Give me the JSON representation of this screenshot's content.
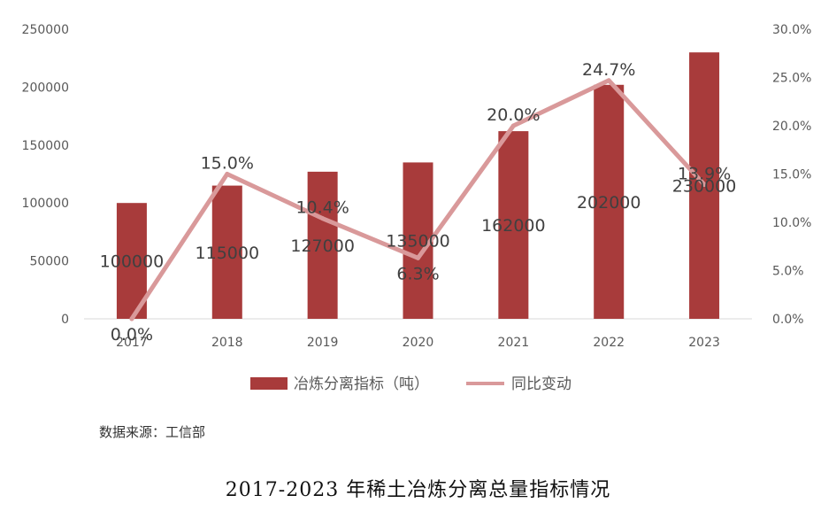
{
  "chart_data": {
    "type": "bar+line",
    "categories": [
      "2017",
      "2018",
      "2019",
      "2020",
      "2021",
      "2022",
      "2023"
    ],
    "series": [
      {
        "name": "冶炼分离指标（吨）",
        "type": "bar",
        "axis": "left",
        "color": "#a83b3b",
        "values": [
          100000,
          115000,
          127000,
          135000,
          162000,
          202000,
          230000
        ],
        "labels": [
          "100000",
          "115000",
          "127000",
          "135000",
          "162000",
          "202000",
          "230000"
        ]
      },
      {
        "name": "同比变动",
        "type": "line",
        "axis": "right",
        "color": "#d9999a",
        "values": [
          0.0,
          15.0,
          10.4,
          6.3,
          20.0,
          24.7,
          13.9
        ],
        "labels": [
          "0.0%",
          "15.0%",
          "10.4%",
          "6.3%",
          "20.0%",
          "24.7%",
          "13.9%"
        ]
      }
    ],
    "y_left": {
      "range": [
        0,
        250000
      ],
      "ticks": [
        "0",
        "50000",
        "100000",
        "150000",
        "200000",
        "250000"
      ]
    },
    "y_right": {
      "range": [
        0,
        30
      ],
      "ticks": [
        "0.0%",
        "5.0%",
        "10.0%",
        "15.0%",
        "20.0%",
        "25.0%",
        "30.0%"
      ]
    },
    "grid": false,
    "legend": "bottom"
  },
  "source": "数据来源：工信部",
  "title": "2017-2023 年稀土冶炼分离总量指标情况"
}
